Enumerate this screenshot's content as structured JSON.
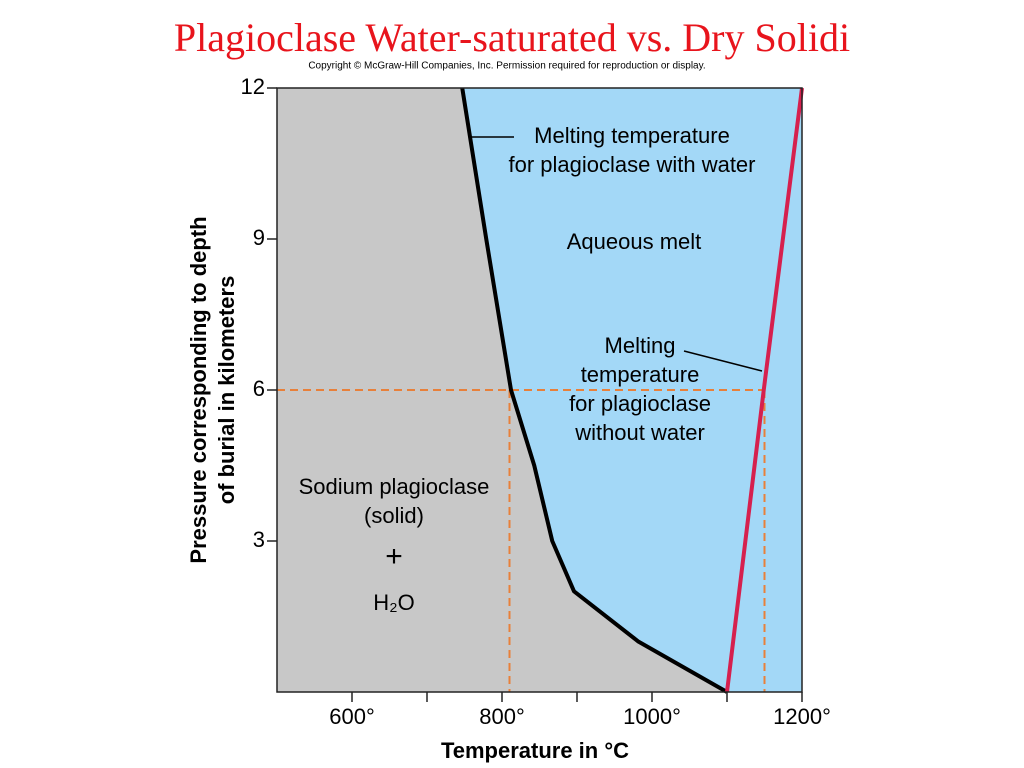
{
  "chart_data": {
    "type": "line",
    "title": "Plagioclase Water-saturated vs. Dry Solidi",
    "subtitle": "Copyright © McGraw-Hill Companies, Inc. Permission required for reproduction or display.",
    "x_label": "Temperature in °C",
    "y_label": [
      "Pressure corresponding to depth",
      "of burial in kilometers"
    ],
    "xlim": [
      500,
      1200
    ],
    "ylim": [
      0,
      12
    ],
    "xticks": [
      {
        "value": 600,
        "label": "600°"
      },
      {
        "value": 800,
        "label": "800°"
      },
      {
        "value": 1000,
        "label": "1000°"
      },
      {
        "value": 1200,
        "label": "1200°"
      }
    ],
    "xminorticks": [
      700,
      900,
      1100
    ],
    "yticks": [
      3,
      6,
      9,
      12
    ],
    "region_colors": [
      "#c8c8c8",
      "#a3d8f7"
    ],
    "series": [
      {
        "color": "#000000",
        "x": [
          747,
          779,
          812,
          843,
          867,
          896,
          982,
          1100
        ],
        "values": [
          12,
          9,
          6,
          4.5,
          3,
          2,
          1,
          0
        ]
      },
      {
        "color": "#d6204e",
        "x": [
          1100,
          1149,
          1200
        ],
        "values": [
          0,
          6,
          12
        ]
      }
    ],
    "reference": {
      "color": "#e8803a",
      "y": 6,
      "x": [
        810,
        1150
      ]
    },
    "annotations": [
      {
        "lines": [
          "Melting temperature",
          "for plagioclase with water"
        ]
      },
      {
        "lines": [
          "Aqueous melt"
        ]
      },
      {
        "lines": [
          "Melting",
          "temperature",
          "for plagioclase",
          "without water"
        ]
      },
      {
        "lines": [
          "Sodium plagioclase",
          "(solid)",
          "+",
          "H₂O"
        ]
      }
    ]
  }
}
